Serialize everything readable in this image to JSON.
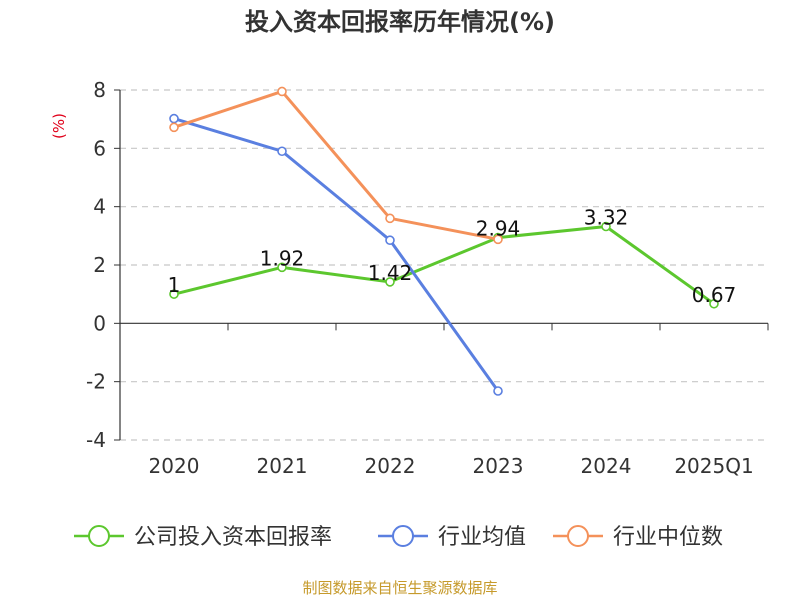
{
  "chart_data": {
    "type": "line",
    "title": "投入资本回报率历年情况(%)",
    "ylabel": "(%)",
    "xlabel": "",
    "categories": [
      "2020",
      "2021",
      "2022",
      "2023",
      "2024",
      "2025Q1"
    ],
    "ylim": [
      -4,
      8
    ],
    "yticks": [
      -4,
      -2,
      0,
      2,
      4,
      6,
      8
    ],
    "grid": true,
    "legend_position": "bottom",
    "series": [
      {
        "name": "公司投入资本回报率",
        "color": "#5cc72e",
        "values": [
          1,
          1.92,
          1.42,
          2.94,
          3.32,
          0.67
        ],
        "labels": [
          "1",
          "1.92",
          "1.42",
          "2.94",
          "3.32",
          "0.67"
        ]
      },
      {
        "name": "行业均值",
        "color": "#5a7fe0",
        "values": [
          7.02,
          5.9,
          2.85,
          -2.32,
          null,
          null
        ]
      },
      {
        "name": "行业中位数",
        "color": "#f4915a",
        "values": [
          6.72,
          7.95,
          3.6,
          2.88,
          null,
          null
        ]
      }
    ]
  },
  "source": "制图数据来自恒生聚源数据库"
}
